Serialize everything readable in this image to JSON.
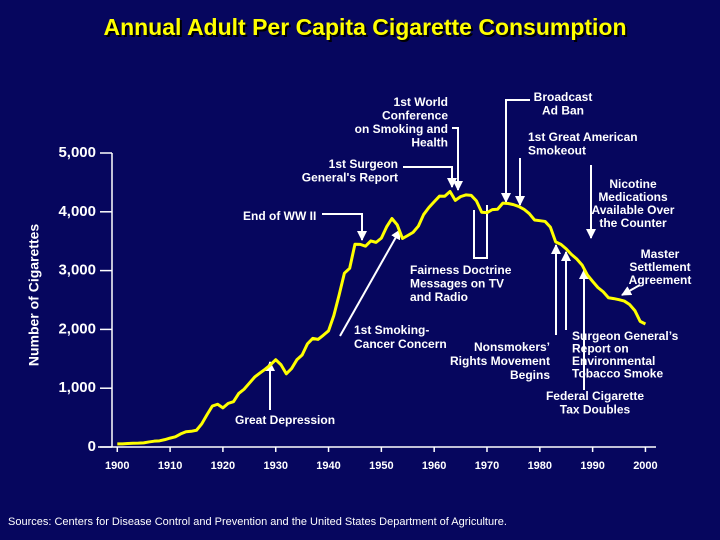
{
  "chart_data": {
    "type": "line",
    "title": "Annual Adult Per Capita Cigarette Consumption",
    "y_label": "Number of Cigarettes",
    "source": "Sources: Centers for Disease Control and Prevention and the United States Department of Agriculture.",
    "color": "#ffff00",
    "x": [
      1900,
      1901,
      1902,
      1903,
      1904,
      1905,
      1906,
      1907,
      1908,
      1909,
      1910,
      1911,
      1912,
      1913,
      1914,
      1915,
      1916,
      1917,
      1918,
      1919,
      1920,
      1921,
      1922,
      1923,
      1924,
      1925,
      1926,
      1927,
      1928,
      1929,
      1930,
      1931,
      1932,
      1933,
      1934,
      1935,
      1936,
      1937,
      1938,
      1939,
      1940,
      1941,
      1942,
      1943,
      1944,
      1945,
      1946,
      1947,
      1948,
      1949,
      1950,
      1951,
      1952,
      1953,
      1954,
      1955,
      1956,
      1957,
      1958,
      1959,
      1960,
      1961,
      1962,
      1963,
      1964,
      1965,
      1966,
      1967,
      1968,
      1969,
      1970,
      1971,
      1972,
      1973,
      1974,
      1975,
      1976,
      1977,
      1978,
      1979,
      1980,
      1981,
      1982,
      1983,
      1984,
      1985,
      1986,
      1987,
      1988,
      1989,
      1990,
      1991,
      1992,
      1993,
      1994,
      1995,
      1996,
      1997,
      1998,
      1999,
      2000
    ],
    "values": [
      54,
      53,
      60,
      64,
      66,
      70,
      86,
      99,
      105,
      125,
      151,
      173,
      223,
      260,
      267,
      285,
      395,
      551,
      697,
      727,
      665,
      742,
      770,
      911,
      982,
      1085,
      1189,
      1257,
      1323,
      1397,
      1485,
      1399,
      1245,
      1334,
      1483,
      1564,
      1754,
      1847,
      1830,
      1900,
      1976,
      2236,
      2585,
      2956,
      3039,
      3449,
      3446,
      3416,
      3505,
      3480,
      3552,
      3744,
      3886,
      3778,
      3546,
      3597,
      3650,
      3755,
      3953,
      4073,
      4171,
      4266,
      4265,
      4345,
      4194,
      4258,
      4287,
      4280,
      4186,
      3993,
      3985,
      4037,
      4043,
      4148,
      4141,
      4122,
      4091,
      4043,
      3970,
      3861,
      3849,
      3836,
      3739,
      3488,
      3446,
      3370,
      3274,
      3197,
      3096,
      2926,
      2817,
      2713,
      2640,
      2539,
      2524,
      2505,
      2482,
      2423,
      2320,
      2136,
      2092
    ],
    "xlim": [
      1899,
      2002
    ],
    "ylim": [
      0,
      5000
    ],
    "xticks": [
      1900,
      1910,
      1920,
      1930,
      1940,
      1950,
      1960,
      1970,
      1980,
      1990,
      2000
    ],
    "yticks": [
      0,
      {
        "value": 1000,
        "label": "1,000"
      },
      {
        "value": 2000,
        "label": "2,000"
      },
      {
        "value": 3000,
        "label": "3,000"
      },
      {
        "value": 4000,
        "label": "4,000"
      },
      {
        "value": 5000,
        "label": "5,000"
      }
    ],
    "annotations": [
      [
        "1st World",
        "Conference",
        "on Smoking and",
        "Health"
      ],
      [
        "Broadcast",
        "Ad Ban"
      ],
      [
        "1st Great American",
        "Smokeout"
      ],
      [
        "1st Surgeon",
        "General's Report"
      ],
      [
        "Nicotine",
        "Medications",
        "Available Over",
        "the Counter"
      ],
      [
        "End of WW II"
      ],
      [
        "Fairness Doctrine",
        "Messages on TV",
        "and Radio"
      ],
      [
        "Master",
        "Settlement",
        "Agreement"
      ],
      [
        "1st Smoking-",
        "Cancer Concern"
      ],
      [
        "Nonsmokers’",
        "Rights Movement",
        "Begins"
      ],
      [
        "Surgeon General’s",
        "Report on",
        "Environmental",
        "Tobacco Smoke"
      ],
      [
        "Federal Cigarette",
        "Tax Doubles"
      ],
      [
        "Great Depression"
      ]
    ]
  }
}
